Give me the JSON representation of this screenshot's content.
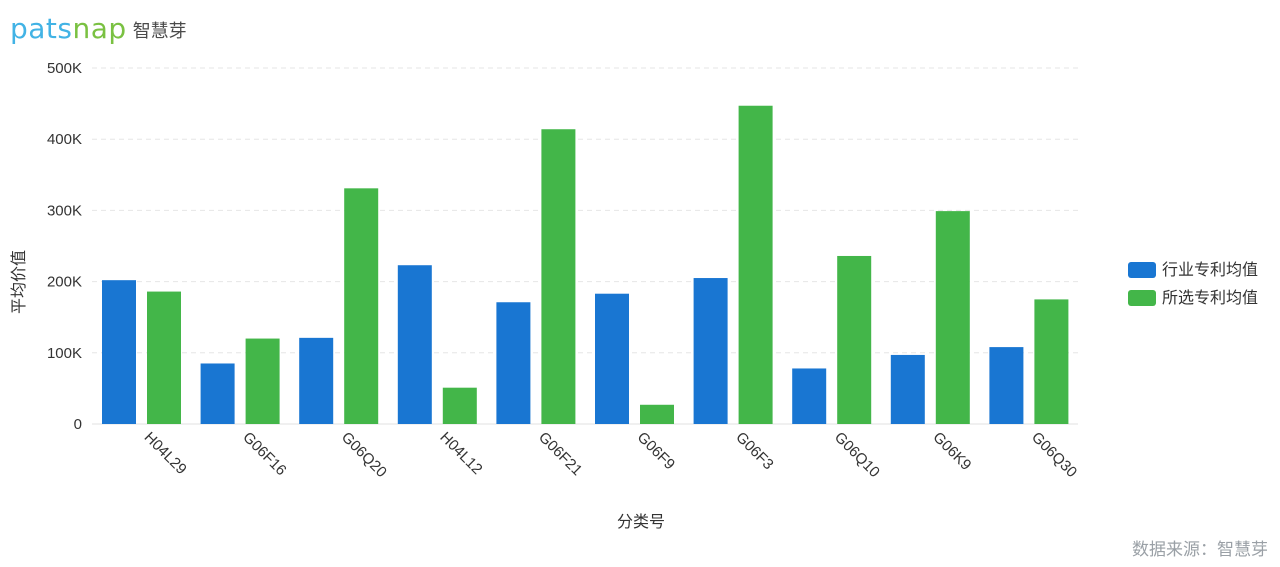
{
  "logo": {
    "brand_prefix": "pats",
    "brand_accent": "nap",
    "brand_cn": "智慧芽"
  },
  "source_label": "数据来源：智慧芽",
  "colors": {
    "industry": "#1976d2",
    "selected": "#43b649",
    "grid": "#e6e6e6",
    "axis_text": "#333333"
  },
  "chart_data": {
    "type": "bar",
    "title": "",
    "xlabel": "分类号",
    "ylabel": "平均价值",
    "categories": [
      "H04L29",
      "G06F16",
      "G06Q20",
      "H04L12",
      "G06F21",
      "G06F9",
      "G06F3",
      "G06Q10",
      "G06K9",
      "G06Q30"
    ],
    "series": [
      {
        "name": "行业专利均值",
        "color": "#1976d2",
        "values": [
          202000,
          85000,
          121000,
          223000,
          171000,
          183000,
          205000,
          78000,
          97000,
          108000
        ]
      },
      {
        "name": "所选专利均值",
        "color": "#43b649",
        "values": [
          186000,
          120000,
          331000,
          51000,
          414000,
          27000,
          447000,
          236000,
          299000,
          175000
        ]
      }
    ],
    "ylim": [
      0,
      500000
    ],
    "yticks": [
      "0",
      "100K",
      "200K",
      "300K",
      "400K",
      "500K"
    ],
    "grid": true,
    "legend_position": "right"
  }
}
